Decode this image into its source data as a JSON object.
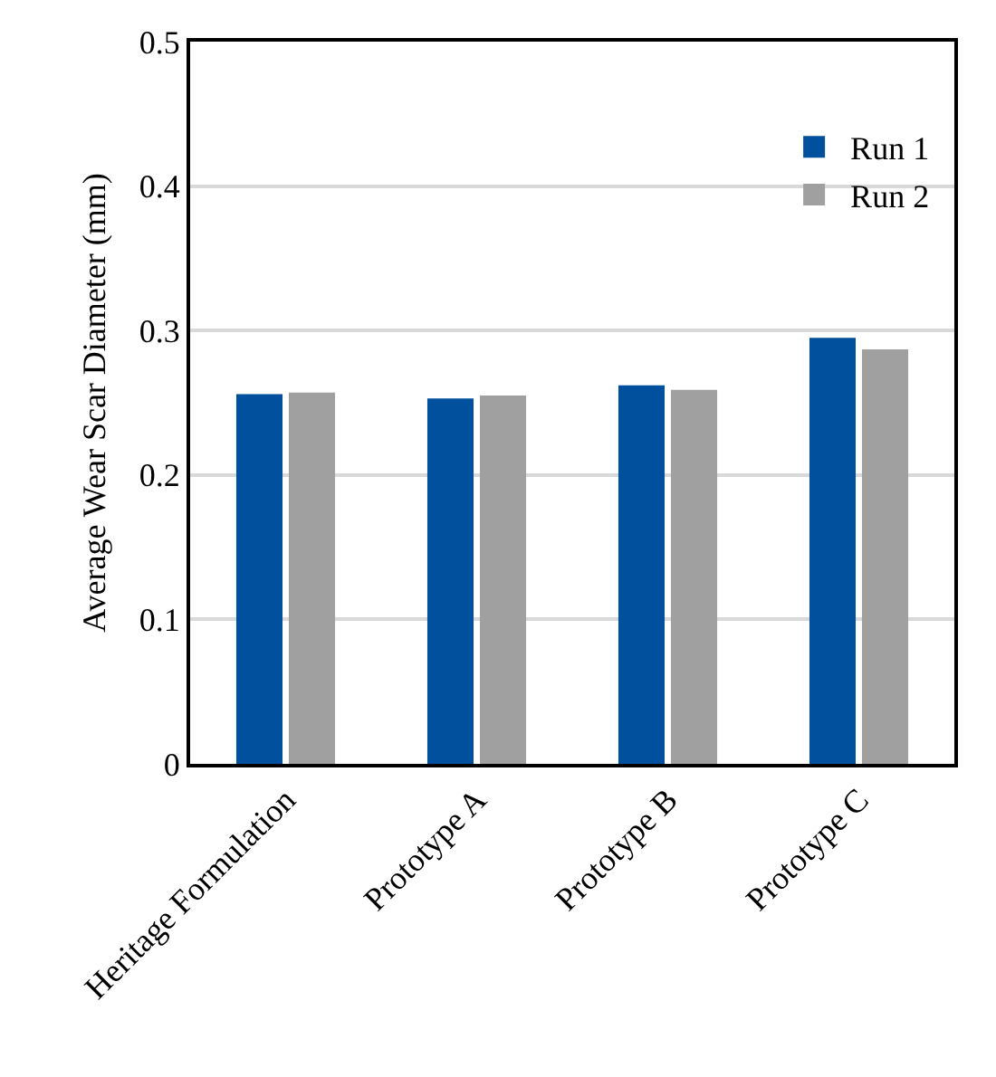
{
  "chart_data": {
    "type": "bar",
    "ylabel": "Average Wear Scar Diameter (mm)",
    "categories": [
      "Heritage Formulation",
      "Prototype A",
      "Prototype B",
      "Prototype C"
    ],
    "series": [
      {
        "name": "Run 1",
        "color": "#00509e",
        "values": [
          0.256,
          0.253,
          0.262,
          0.295
        ]
      },
      {
        "name": "Run 2",
        "color": "#a0a0a0",
        "values": [
          0.257,
          0.255,
          0.259,
          0.287
        ]
      }
    ],
    "ylim": [
      0,
      0.5
    ],
    "yticks": [
      0,
      0.1,
      0.2,
      0.3,
      0.4,
      0.5
    ],
    "grid": "y",
    "legend": "top right"
  }
}
